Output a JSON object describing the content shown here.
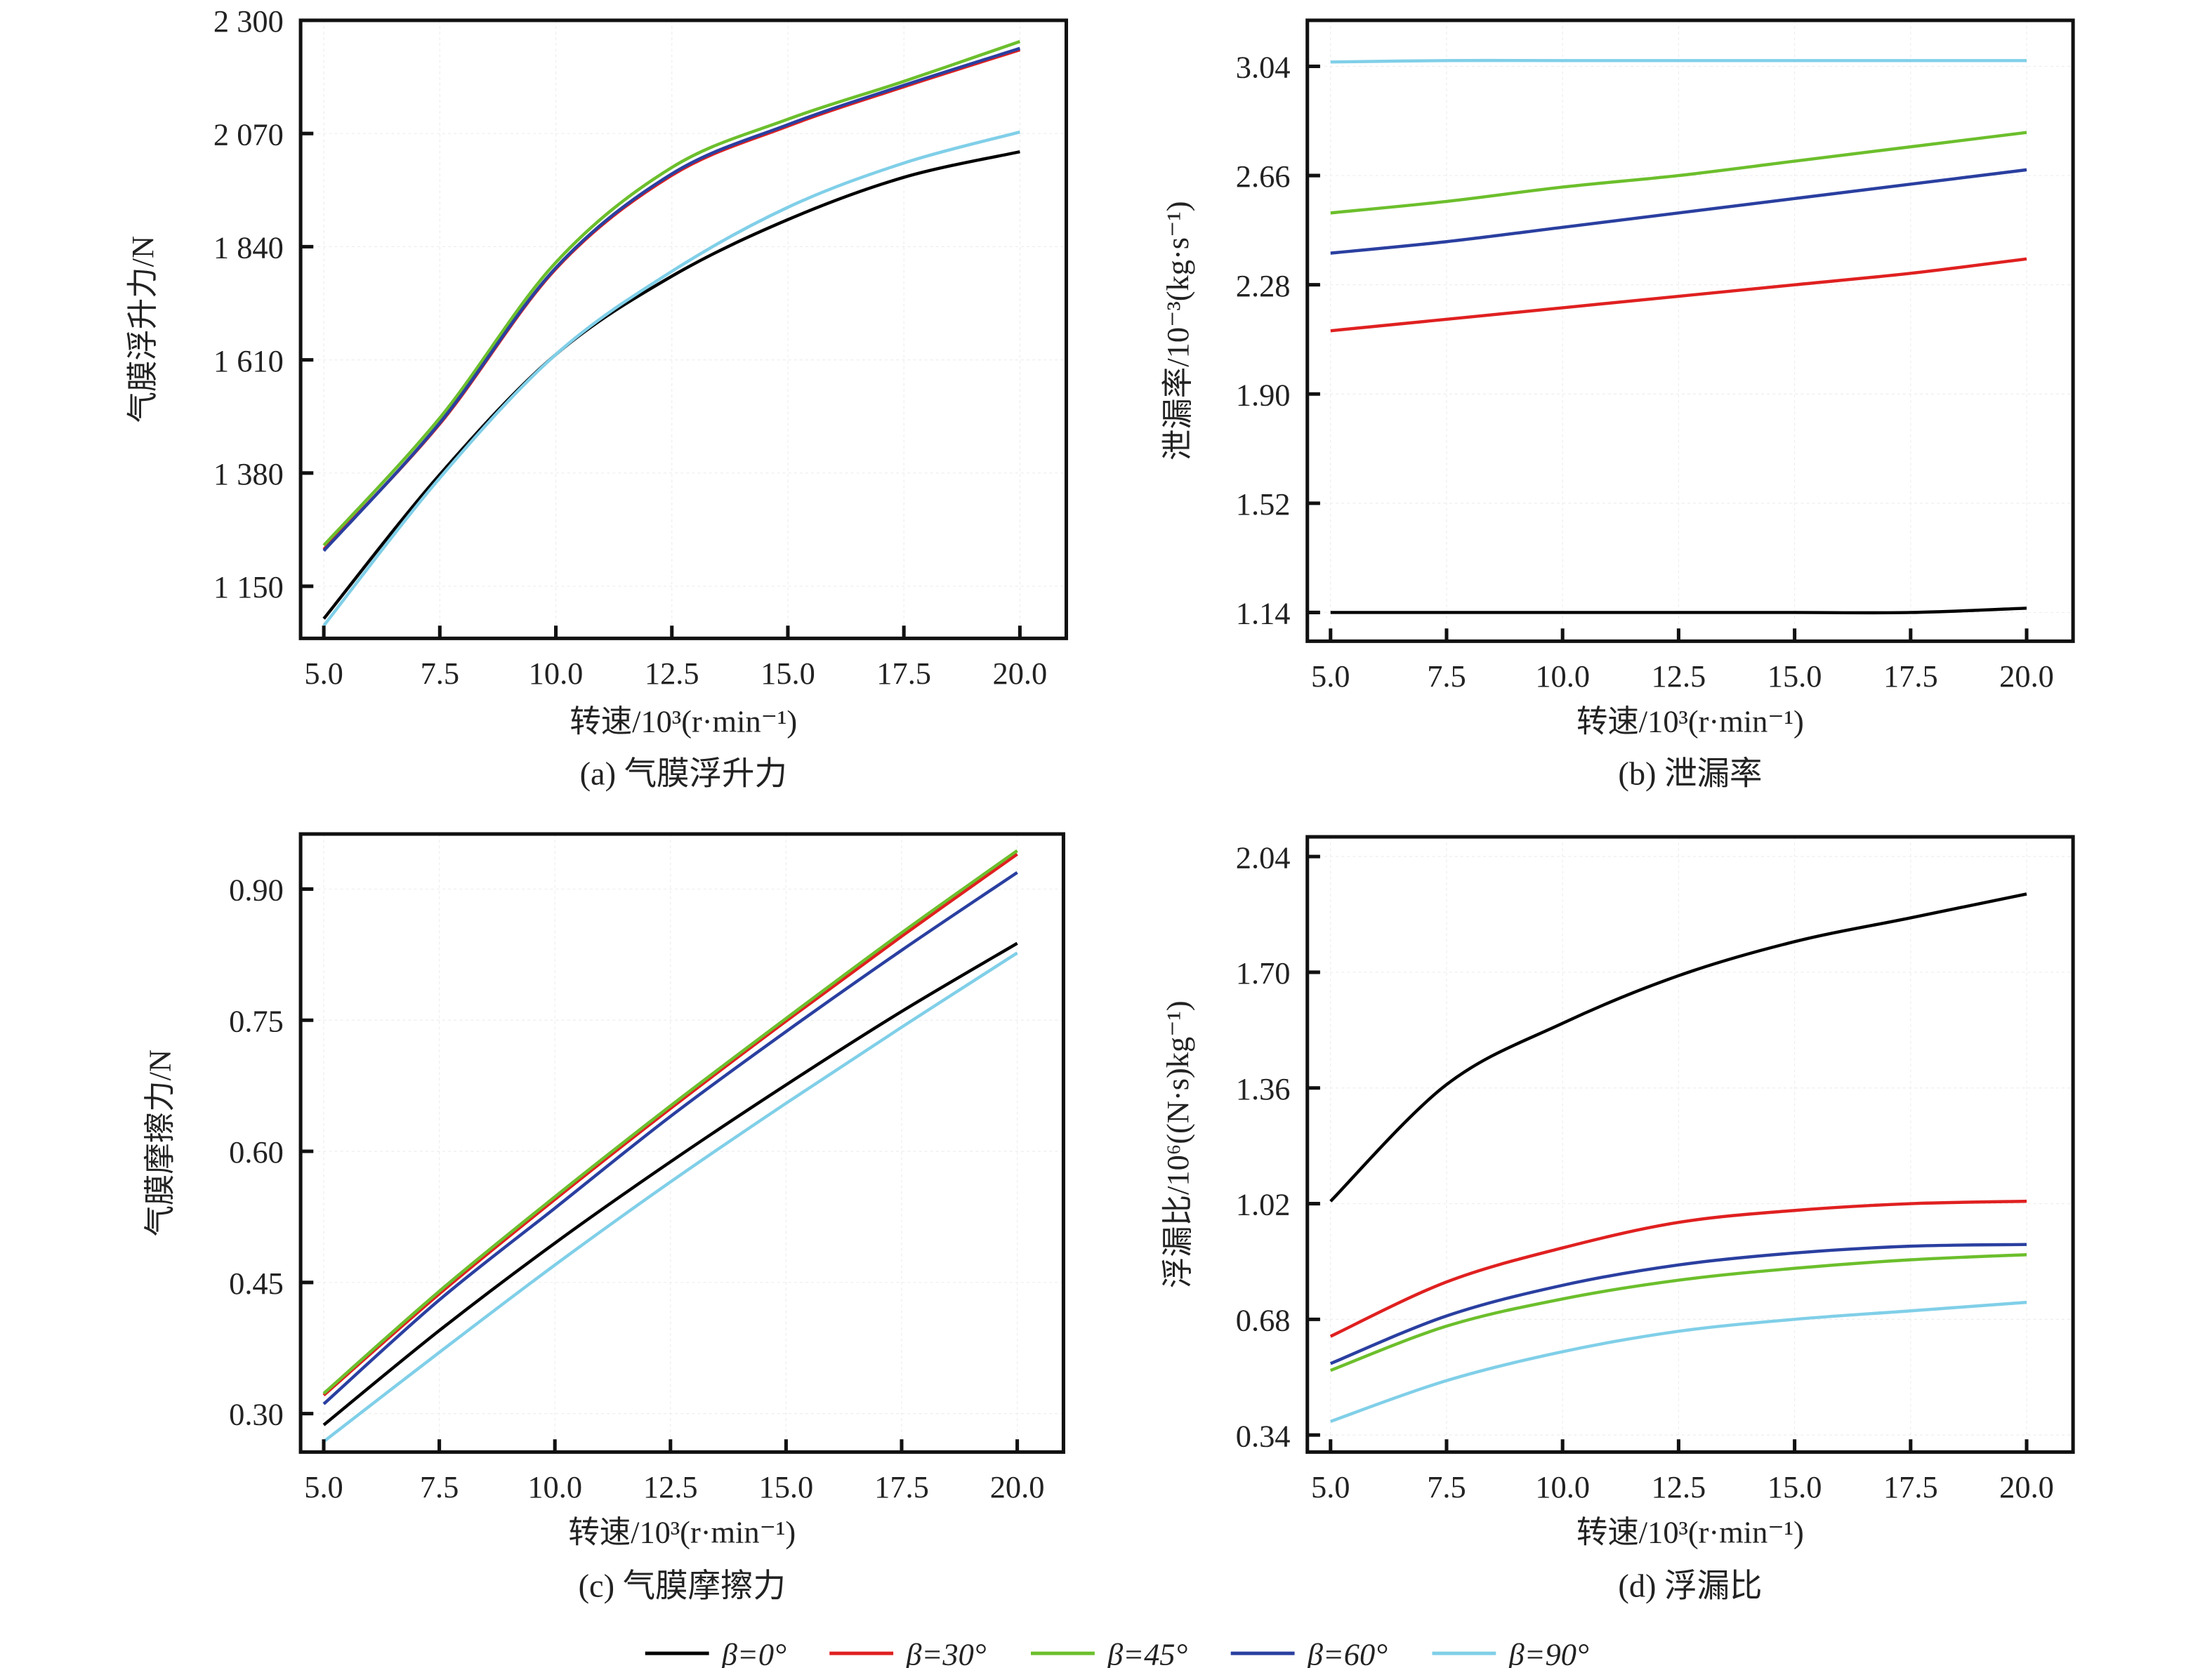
{
  "colors": {
    "beta0": "#000000",
    "beta30": "#e02020",
    "beta45": "#6cbf2c",
    "beta60": "#2a3fa0",
    "beta90": "#80cfe8"
  },
  "legend": [
    {
      "label": "β=0°",
      "color": "#000000"
    },
    {
      "label": "β=30°",
      "color": "#e02020"
    },
    {
      "label": "β=45°",
      "color": "#6cbf2c"
    },
    {
      "label": "β=60°",
      "color": "#2a3fa0"
    },
    {
      "label": "β=90°",
      "color": "#80cfe8"
    }
  ],
  "chart_data": [
    {
      "type": "line",
      "caption": "(a) 气膜浮升力",
      "xlabel": "转速/10³(r·min⁻¹)",
      "ylabel": "气膜浮升力/N",
      "xlim": [
        4.5,
        21
      ],
      "ylim": [
        1044,
        2300
      ],
      "xticks": [
        5,
        7.5,
        10,
        12.5,
        15,
        17.5,
        20
      ],
      "xtick_labels": [
        "5.0",
        "7.5",
        "10.0",
        "12.5",
        "15.0",
        "17.5",
        "20.0"
      ],
      "yticks": [
        1150,
        1380,
        1610,
        1840,
        2070,
        2300
      ],
      "ytick_labels": [
        "1 150",
        "1 380",
        "1 610",
        "1 840",
        "2 070",
        "2 300"
      ],
      "x": [
        5,
        7.5,
        10,
        12.5,
        15,
        17.5,
        20
      ],
      "series": [
        {
          "name": "β=0°",
          "values": [
            1084,
            1377,
            1621,
            1780,
            1895,
            1981,
            2033
          ]
        },
        {
          "name": "β=30°",
          "values": [
            1225,
            1480,
            1795,
            1985,
            2085,
            2165,
            2240
          ]
        },
        {
          "name": "β=45°",
          "values": [
            1233,
            1492,
            1808,
            2001,
            2099,
            2176,
            2257
          ]
        },
        {
          "name": "β=60°",
          "values": [
            1222,
            1482,
            1797,
            1988,
            2088,
            2168,
            2243
          ]
        },
        {
          "name": "β=90°",
          "values": [
            1070,
            1370,
            1621,
            1790,
            1920,
            2010,
            2073
          ]
        }
      ]
    },
    {
      "type": "line",
      "caption": "(b) 泄漏率",
      "xlabel": "转速/10³(r·min⁻¹)",
      "ylabel": "泄漏率/10⁻³(kg·s⁻¹)",
      "xlim": [
        4.5,
        21
      ],
      "ylim": [
        1.04,
        3.2
      ],
      "xticks": [
        5,
        7.5,
        10,
        12.5,
        15,
        17.5,
        20
      ],
      "xtick_labels": [
        "5.0",
        "7.5",
        "10.0",
        "12.5",
        "15.0",
        "17.5",
        "20.0"
      ],
      "yticks": [
        1.14,
        1.52,
        1.9,
        2.28,
        2.66,
        3.04
      ],
      "ytick_labels": [
        "1.14",
        "1.52",
        "1.90",
        "2.28",
        "2.66",
        "3.04"
      ],
      "x": [
        5,
        7.5,
        10,
        12.5,
        15,
        17.5,
        20
      ],
      "series": [
        {
          "name": "β=0°",
          "values": [
            1.14,
            1.14,
            1.14,
            1.14,
            1.14,
            1.14,
            1.155
          ]
        },
        {
          "name": "β=30°",
          "values": [
            2.12,
            2.16,
            2.2,
            2.24,
            2.28,
            2.32,
            2.37
          ]
        },
        {
          "name": "β=45°",
          "values": [
            2.53,
            2.57,
            2.62,
            2.66,
            2.71,
            2.76,
            2.81
          ]
        },
        {
          "name": "β=60°",
          "values": [
            2.39,
            2.43,
            2.48,
            2.53,
            2.58,
            2.63,
            2.68
          ]
        },
        {
          "name": "β=90°",
          "values": [
            3.055,
            3.06,
            3.06,
            3.06,
            3.06,
            3.06,
            3.06
          ]
        }
      ]
    },
    {
      "type": "line",
      "caption": "(c) 气膜摩擦力",
      "xlabel": "转速/10³(r·min⁻¹)",
      "ylabel": "气膜摩擦力/N",
      "xlim": [
        4.5,
        21
      ],
      "ylim": [
        0.256,
        0.963
      ],
      "xticks": [
        5,
        7.5,
        10,
        12.5,
        15,
        17.5,
        20
      ],
      "xtick_labels": [
        "5.0",
        "7.5",
        "10.0",
        "12.5",
        "15.0",
        "17.5",
        "20.0"
      ],
      "yticks": [
        0.3,
        0.45,
        0.6,
        0.75,
        0.9
      ],
      "ytick_labels": [
        "0.30",
        "0.45",
        "0.60",
        "0.75",
        "0.90"
      ],
      "x": [
        5,
        7.5,
        10,
        12.5,
        15,
        17.5,
        20
      ],
      "series": [
        {
          "name": "β=0°",
          "values": [
            0.287,
            0.395,
            0.495,
            0.588,
            0.676,
            0.76,
            0.838
          ]
        },
        {
          "name": "β=30°",
          "values": [
            0.321,
            0.437,
            0.545,
            0.649,
            0.749,
            0.846,
            0.94
          ]
        },
        {
          "name": "β=45°",
          "values": [
            0.323,
            0.44,
            0.548,
            0.652,
            0.752,
            0.85,
            0.944
          ]
        },
        {
          "name": "β=60°",
          "values": [
            0.311,
            0.43,
            0.535,
            0.64,
            0.737,
            0.83,
            0.919
          ]
        },
        {
          "name": "β=90°",
          "values": [
            0.268,
            0.37,
            0.47,
            0.565,
            0.655,
            0.742,
            0.827
          ]
        }
      ]
    },
    {
      "type": "line",
      "caption": "(d) 浮漏比",
      "xlabel": "转速/10³(r·min⁻¹)",
      "ylabel": "浮漏比/10⁶((N·s)kg⁻¹)",
      "xlim": [
        4.5,
        21
      ],
      "ylim": [
        0.29,
        2.098
      ],
      "xticks": [
        5,
        7.5,
        10,
        12.5,
        15,
        17.5,
        20
      ],
      "xtick_labels": [
        "5.0",
        "7.5",
        "10.0",
        "12.5",
        "15.0",
        "17.5",
        "20.0"
      ],
      "yticks": [
        0.34,
        0.68,
        1.02,
        1.36,
        1.7,
        2.04
      ],
      "ytick_labels": [
        "0.34",
        "0.68",
        "1.02",
        "1.36",
        "1.70",
        "2.04"
      ],
      "x": [
        5,
        7.5,
        10,
        12.5,
        15,
        17.5,
        20
      ],
      "series": [
        {
          "name": "β=0°",
          "values": [
            1.027,
            1.37,
            1.55,
            1.69,
            1.79,
            1.86,
            1.93
          ]
        },
        {
          "name": "β=30°",
          "values": [
            0.63,
            0.79,
            0.89,
            0.965,
            1.0,
            1.02,
            1.027
          ]
        },
        {
          "name": "β=45°",
          "values": [
            0.53,
            0.66,
            0.74,
            0.795,
            0.83,
            0.855,
            0.87
          ]
        },
        {
          "name": "β=60°",
          "values": [
            0.55,
            0.69,
            0.78,
            0.84,
            0.875,
            0.895,
            0.9
          ]
        },
        {
          "name": "β=90°",
          "values": [
            0.38,
            0.5,
            0.585,
            0.645,
            0.68,
            0.705,
            0.73
          ]
        }
      ]
    }
  ]
}
